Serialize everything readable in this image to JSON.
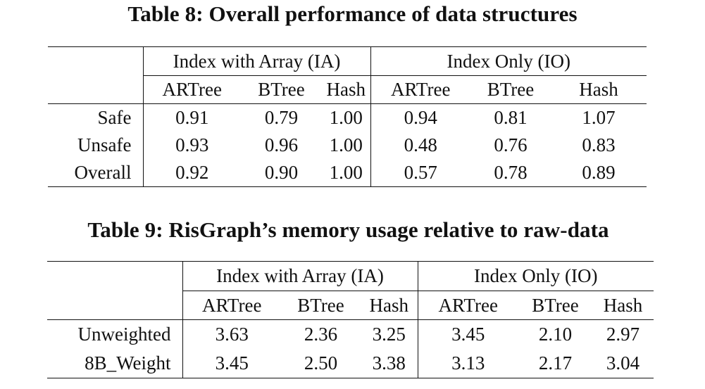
{
  "table8": {
    "caption": "Table 8: Overall performance of data structures",
    "groups": [
      "Index with Array (IA)",
      "Index Only (IO)"
    ],
    "subheaders": [
      "ARTree",
      "BTree",
      "Hash",
      "ARTree",
      "BTree",
      "Hash"
    ],
    "rows": [
      {
        "label": "Safe",
        "values": [
          "0.91",
          "0.79",
          "1.00",
          "0.94",
          "0.81",
          "1.07"
        ]
      },
      {
        "label": "Unsafe",
        "values": [
          "0.93",
          "0.96",
          "1.00",
          "0.48",
          "0.76",
          "0.83"
        ]
      },
      {
        "label": "Overall",
        "values": [
          "0.92",
          "0.90",
          "1.00",
          "0.57",
          "0.78",
          "0.89"
        ]
      }
    ]
  },
  "table9": {
    "caption": "Table 9: RisGraph’s memory usage relative to raw-data",
    "groups": [
      "Index with Array (IA)",
      "Index Only (IO)"
    ],
    "subheaders": [
      "ARTree",
      "BTree",
      "Hash",
      "ARTree",
      "BTree",
      "Hash"
    ],
    "rows": [
      {
        "label": "Unweighted",
        "values": [
          "3.63",
          "2.36",
          "3.25",
          "3.45",
          "2.10",
          "2.97"
        ]
      },
      {
        "label": "8B_Weight",
        "values": [
          "3.45",
          "2.50",
          "3.38",
          "3.13",
          "2.17",
          "3.04"
        ]
      }
    ]
  }
}
